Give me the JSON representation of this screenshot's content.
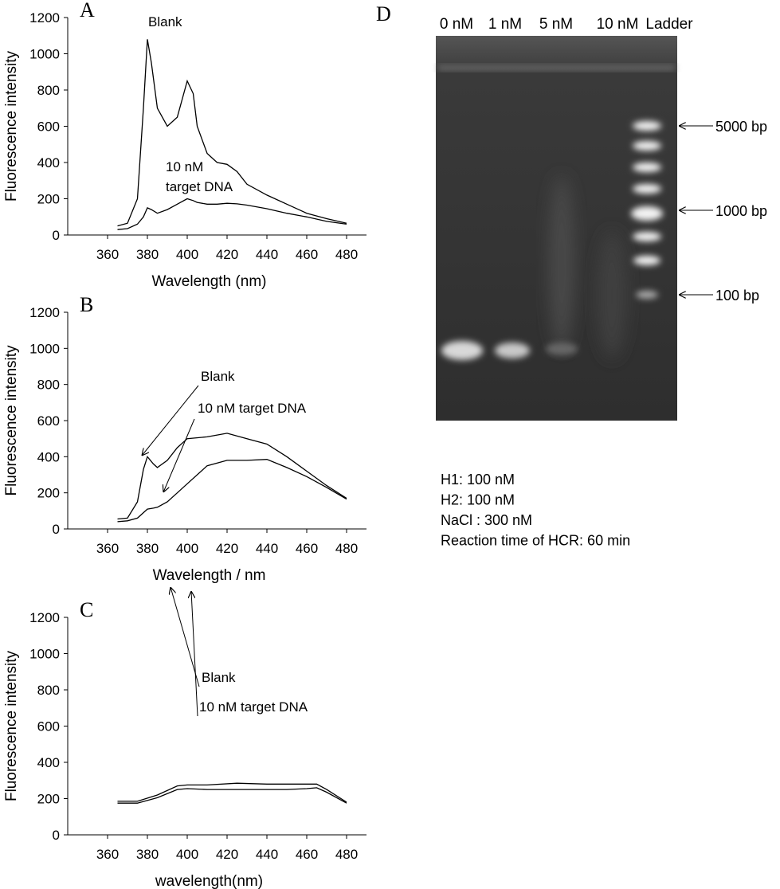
{
  "chart_data": [
    {
      "type": "line",
      "panel": "A",
      "x_label": "Wavelength (nm)",
      "y_label": "Fluorescence intensity",
      "x": [
        365,
        370,
        375,
        378,
        380,
        382,
        385,
        390,
        395,
        400,
        403,
        405,
        410,
        415,
        420,
        425,
        430,
        440,
        450,
        460,
        470,
        480
      ],
      "series": [
        {
          "color": "#000000",
          "values": [
            50,
            65,
            200,
            700,
            1080,
            950,
            700,
            600,
            650,
            850,
            780,
            600,
            450,
            400,
            390,
            350,
            280,
            220,
            170,
            120,
            90,
            65
          ]
        },
        {
          "color": "#000000",
          "values": [
            30,
            35,
            60,
            100,
            150,
            140,
            120,
            140,
            170,
            200,
            190,
            180,
            170,
            170,
            175,
            172,
            165,
            145,
            120,
            100,
            75,
            60
          ]
        }
      ],
      "xlim": [
        340,
        490
      ],
      "ylim": [
        0,
        1200
      ],
      "xticks": [
        360,
        380,
        400,
        420,
        440,
        460,
        480
      ],
      "yticks": [
        0,
        200,
        400,
        600,
        800,
        1000,
        1200
      ],
      "annotations": [
        "Blank",
        "10 nM",
        "target DNA"
      ]
    },
    {
      "type": "line",
      "panel": "B",
      "x_label": "Wavelength / nm",
      "y_label": "Fluorescence intensity",
      "x": [
        365,
        370,
        375,
        378,
        380,
        383,
        385,
        390,
        395,
        400,
        410,
        420,
        430,
        440,
        450,
        460,
        470,
        480
      ],
      "series": [
        {
          "color": "#000000",
          "values": [
            55,
            60,
            150,
            330,
            400,
            360,
            340,
            380,
            450,
            500,
            510,
            530,
            500,
            470,
            400,
            320,
            240,
            170
          ]
        },
        {
          "color": "#000000",
          "values": [
            40,
            45,
            60,
            90,
            110,
            115,
            120,
            150,
            200,
            250,
            350,
            380,
            380,
            385,
            340,
            290,
            230,
            165
          ]
        }
      ],
      "xlim": [
        340,
        490
      ],
      "ylim": [
        0,
        1200
      ],
      "xticks": [
        360,
        380,
        400,
        420,
        440,
        460,
        480
      ],
      "yticks": [
        0,
        200,
        400,
        600,
        800,
        1000,
        1200
      ],
      "annotations": [
        "Blank",
        "10 nM target DNA"
      ]
    },
    {
      "type": "line",
      "panel": "C",
      "x_label": "wavelength(nm)",
      "y_label": "Fluorescence intensity",
      "x": [
        365,
        375,
        385,
        395,
        400,
        410,
        425,
        440,
        450,
        460,
        465,
        470,
        480
      ],
      "series": [
        {
          "color": "#000000",
          "values": [
            185,
            185,
            220,
            270,
            275,
            275,
            285,
            280,
            280,
            280,
            280,
            250,
            180
          ]
        },
        {
          "color": "#000000",
          "values": [
            175,
            175,
            205,
            250,
            255,
            250,
            250,
            250,
            250,
            255,
            260,
            235,
            175
          ]
        }
      ],
      "xlim": [
        340,
        490
      ],
      "ylim": [
        0,
        1200
      ],
      "xticks": [
        360,
        380,
        400,
        420,
        440,
        460,
        480
      ],
      "yticks": [
        0,
        200,
        400,
        600,
        800,
        1000,
        1200
      ],
      "annotations": [
        "Blank",
        "10 nM target DNA"
      ]
    }
  ],
  "gel": {
    "panel": "D",
    "lanes": [
      "0 nM",
      "1 nM",
      "5 nM",
      "10 nM",
      "Ladder"
    ],
    "markers": [
      "5000 bp",
      "1000 bp",
      "100 bp"
    ],
    "conditions": [
      "H1: 100 nM",
      "H2: 100 nM",
      "NaCl : 300 nM",
      "Reaction time of HCR: 60 min"
    ]
  }
}
